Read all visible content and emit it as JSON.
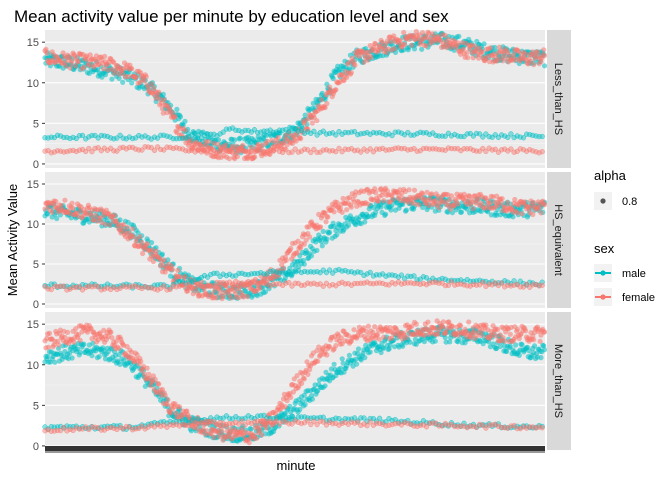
{
  "chart_data": {
    "type": "scatter",
    "title": "Mean activity value per minute by education level and sex",
    "xlabel": "minute",
    "ylabel": "Mean Activity Value",
    "x_range": [
      1,
      1440
    ],
    "ylim": [
      -0.5,
      16.5
    ],
    "y_ticks": [
      0,
      5,
      10,
      15
    ],
    "y_tick_labels": [
      "0",
      "5",
      "10",
      "15"
    ],
    "grid": true,
    "background": "#EBEBEB",
    "facets": [
      "Less_than_HS",
      "HS_equivalent",
      "More_than_HS"
    ],
    "legend": {
      "position": "right",
      "alpha": {
        "title": "alpha",
        "entries": [
          "0.8"
        ]
      },
      "sex": {
        "title": "sex",
        "entries": [
          "male",
          "female"
        ]
      }
    },
    "series_colors": {
      "male": "#00BFC4",
      "female": "#F8766D"
    },
    "series": [
      {
        "facet": "Less_than_HS",
        "name": "male",
        "band": "high",
        "keys": [
          [
            0,
            12.8
          ],
          [
            60,
            12.5
          ],
          [
            120,
            12.0
          ],
          [
            180,
            11.5
          ],
          [
            240,
            10.8
          ],
          [
            300,
            9.5
          ],
          [
            360,
            7.0
          ],
          [
            420,
            3.6
          ],
          [
            480,
            2.6
          ],
          [
            540,
            2.2
          ],
          [
            600,
            2.4
          ],
          [
            660,
            3.0
          ],
          [
            720,
            4.0
          ],
          [
            780,
            7.0
          ],
          [
            840,
            11.0
          ],
          [
            900,
            13.2
          ],
          [
            960,
            14.0
          ],
          [
            1020,
            14.8
          ],
          [
            1080,
            15.0
          ],
          [
            1140,
            15.2
          ],
          [
            1200,
            14.8
          ],
          [
            1260,
            14.0
          ],
          [
            1320,
            13.5
          ],
          [
            1380,
            13.2
          ],
          [
            1440,
            13.0
          ]
        ]
      },
      {
        "facet": "Less_than_HS",
        "name": "female",
        "band": "high",
        "keys": [
          [
            0,
            13.2
          ],
          [
            60,
            12.8
          ],
          [
            120,
            12.6
          ],
          [
            180,
            12.3
          ],
          [
            240,
            11.5
          ],
          [
            300,
            9.8
          ],
          [
            360,
            6.0
          ],
          [
            420,
            2.6
          ],
          [
            480,
            1.8
          ],
          [
            540,
            1.5
          ],
          [
            600,
            1.6
          ],
          [
            660,
            2.2
          ],
          [
            720,
            3.2
          ],
          [
            780,
            6.0
          ],
          [
            840,
            10.0
          ],
          [
            900,
            13.0
          ],
          [
            960,
            14.2
          ],
          [
            1020,
            15.2
          ],
          [
            1080,
            15.6
          ],
          [
            1140,
            15.2
          ],
          [
            1200,
            14.2
          ],
          [
            1260,
            13.5
          ],
          [
            1320,
            13.5
          ],
          [
            1380,
            13.0
          ],
          [
            1440,
            13.2
          ]
        ]
      },
      {
        "facet": "Less_than_HS",
        "name": "male",
        "band": "low",
        "keys": [
          [
            0,
            3.3
          ],
          [
            360,
            3.3
          ],
          [
            480,
            3.5
          ],
          [
            540,
            4.3
          ],
          [
            600,
            4.0
          ],
          [
            720,
            4.2
          ],
          [
            780,
            3.8
          ],
          [
            1080,
            3.7
          ],
          [
            1440,
            3.4
          ]
        ]
      },
      {
        "facet": "Less_than_HS",
        "name": "female",
        "band": "low",
        "keys": [
          [
            0,
            1.6
          ],
          [
            300,
            1.9
          ],
          [
            480,
            1.6
          ],
          [
            720,
            1.6
          ],
          [
            1080,
            1.8
          ],
          [
            1440,
            1.6
          ]
        ]
      },
      {
        "facet": "HS_equivalent",
        "name": "male",
        "band": "high",
        "keys": [
          [
            0,
            11.8
          ],
          [
            60,
            11.3
          ],
          [
            120,
            11.0
          ],
          [
            180,
            10.6
          ],
          [
            240,
            9.5
          ],
          [
            300,
            7.3
          ],
          [
            360,
            4.5
          ],
          [
            420,
            2.5
          ],
          [
            480,
            1.8
          ],
          [
            540,
            1.5
          ],
          [
            600,
            1.8
          ],
          [
            660,
            2.8
          ],
          [
            720,
            4.5
          ],
          [
            780,
            7.5
          ],
          [
            840,
            9.5
          ],
          [
            900,
            10.8
          ],
          [
            960,
            11.8
          ],
          [
            1020,
            12.4
          ],
          [
            1080,
            12.6
          ],
          [
            1140,
            12.5
          ],
          [
            1200,
            12.2
          ],
          [
            1260,
            12.2
          ],
          [
            1320,
            11.8
          ],
          [
            1380,
            11.8
          ],
          [
            1440,
            12.0
          ]
        ]
      },
      {
        "facet": "HS_equivalent",
        "name": "female",
        "band": "high",
        "keys": [
          [
            0,
            12.5
          ],
          [
            60,
            12.2
          ],
          [
            120,
            11.5
          ],
          [
            180,
            10.8
          ],
          [
            240,
            9.0
          ],
          [
            300,
            6.5
          ],
          [
            360,
            4.0
          ],
          [
            420,
            2.2
          ],
          [
            480,
            1.5
          ],
          [
            540,
            1.5
          ],
          [
            600,
            2.0
          ],
          [
            660,
            3.8
          ],
          [
            720,
            7.0
          ],
          [
            780,
            10.0
          ],
          [
            840,
            12.0
          ],
          [
            900,
            13.2
          ],
          [
            960,
            13.6
          ],
          [
            1020,
            13.5
          ],
          [
            1080,
            13.2
          ],
          [
            1140,
            12.8
          ],
          [
            1200,
            12.8
          ],
          [
            1260,
            12.8
          ],
          [
            1320,
            12.5
          ],
          [
            1380,
            12.0
          ],
          [
            1440,
            12.2
          ]
        ]
      },
      {
        "facet": "HS_equivalent",
        "name": "male",
        "band": "low",
        "keys": [
          [
            0,
            2.3
          ],
          [
            360,
            2.2
          ],
          [
            480,
            3.6
          ],
          [
            660,
            3.9
          ],
          [
            840,
            4.1
          ],
          [
            1080,
            3.2
          ],
          [
            1440,
            2.5
          ]
        ]
      },
      {
        "facet": "HS_equivalent",
        "name": "female",
        "band": "low",
        "keys": [
          [
            0,
            2.0
          ],
          [
            360,
            2.0
          ],
          [
            540,
            2.6
          ],
          [
            720,
            2.4
          ],
          [
            1080,
            2.6
          ],
          [
            1440,
            2.3
          ]
        ]
      },
      {
        "facet": "More_than_HS",
        "name": "male",
        "band": "high",
        "keys": [
          [
            0,
            11.0
          ],
          [
            60,
            11.5
          ],
          [
            120,
            11.8
          ],
          [
            180,
            11.5
          ],
          [
            240,
            10.5
          ],
          [
            300,
            7.8
          ],
          [
            360,
            4.5
          ],
          [
            420,
            2.8
          ],
          [
            480,
            2.0
          ],
          [
            540,
            1.5
          ],
          [
            600,
            1.5
          ],
          [
            660,
            2.5
          ],
          [
            720,
            4.5
          ],
          [
            780,
            7.0
          ],
          [
            840,
            9.5
          ],
          [
            900,
            11.0
          ],
          [
            960,
            12.3
          ],
          [
            1020,
            13.0
          ],
          [
            1080,
            13.5
          ],
          [
            1140,
            13.8
          ],
          [
            1200,
            13.5
          ],
          [
            1260,
            13.5
          ],
          [
            1320,
            12.5
          ],
          [
            1380,
            11.5
          ],
          [
            1440,
            11.5
          ]
        ]
      },
      {
        "facet": "More_than_HS",
        "name": "female",
        "band": "high",
        "keys": [
          [
            0,
            12.8
          ],
          [
            60,
            13.5
          ],
          [
            120,
            14.0
          ],
          [
            180,
            13.5
          ],
          [
            240,
            11.8
          ],
          [
            300,
            8.5
          ],
          [
            360,
            5.0
          ],
          [
            420,
            3.0
          ],
          [
            480,
            2.0
          ],
          [
            540,
            1.3
          ],
          [
            600,
            1.3
          ],
          [
            660,
            3.5
          ],
          [
            720,
            7.5
          ],
          [
            780,
            11.0
          ],
          [
            840,
            13.0
          ],
          [
            900,
            13.8
          ],
          [
            960,
            14.0
          ],
          [
            1020,
            14.0
          ],
          [
            1080,
            14.5
          ],
          [
            1140,
            14.5
          ],
          [
            1200,
            14.5
          ],
          [
            1260,
            14.0
          ],
          [
            1320,
            13.8
          ],
          [
            1380,
            13.8
          ],
          [
            1440,
            13.8
          ]
        ]
      },
      {
        "facet": "More_than_HS",
        "name": "male",
        "band": "low",
        "keys": [
          [
            0,
            2.3
          ],
          [
            240,
            2.3
          ],
          [
            480,
            3.4
          ],
          [
            600,
            3.6
          ],
          [
            720,
            3.4
          ],
          [
            960,
            3.2
          ],
          [
            1200,
            2.6
          ],
          [
            1440,
            2.3
          ]
        ]
      },
      {
        "facet": "More_than_HS",
        "name": "female",
        "band": "low",
        "keys": [
          [
            0,
            2.0
          ],
          [
            240,
            2.2
          ],
          [
            480,
            2.8
          ],
          [
            720,
            2.9
          ],
          [
            960,
            2.7
          ],
          [
            1200,
            2.5
          ],
          [
            1440,
            2.3
          ]
        ]
      }
    ]
  }
}
